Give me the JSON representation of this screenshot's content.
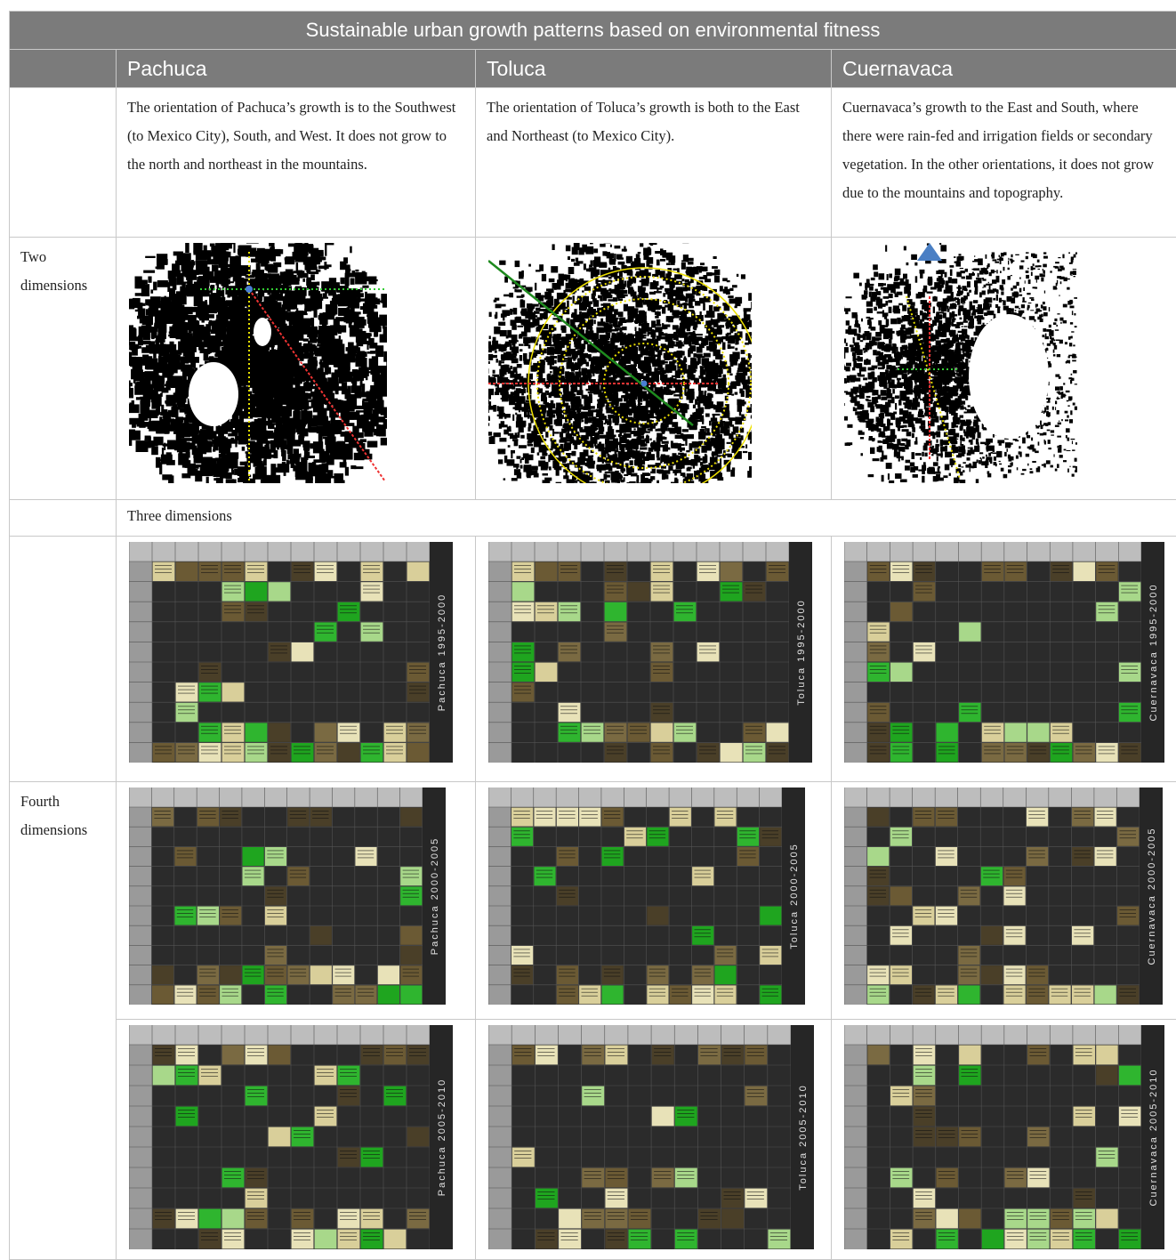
{
  "title": "Sustainable urban growth patterns based on environmental fitness",
  "cities": [
    "Pachuca",
    "Toluca",
    "Cuernavaca"
  ],
  "descriptions": {
    "pachuca": "The orientation of Pachuca’s growth is to the Southwest (to Mexico City), South, and West. It does not grow to the north and northeast in the mountains.",
    "toluca": "The orientation of Toluca’s growth is both to the East and Northeast (to Mexico City).",
    "cuernavaca": "Cuernavaca’s growth to the East and South, where there were rain-fed and irrigation fields or secondary vegetation. In the other orientations, it does not grow due to the mountains and topography."
  },
  "row_labels": {
    "two": "Two dimensions",
    "three": "Three dimensions",
    "fourth": "Fourth dimensions"
  },
  "matrix_labels": {
    "p1": "Pachuca 1995-2000",
    "t1": "Toluca 1995-2000",
    "c1": "Cuernavaca 1995-2000",
    "p2": "Pachuca 2000-2005",
    "t2": "Toluca 2000-2005",
    "c2": "Cuernavaca 2000-2005",
    "p3": "Pachuca 2005-2010",
    "t3": "Toluca 2005-2010",
    "c3": "Cuernavaca 2005-2010"
  },
  "colors": {
    "header_bg": "#7b7b7b",
    "matrix_bg": "#2b2b2b",
    "green_bright": "#2fb52f",
    "green_light": "#a8d88a",
    "cream": "#e8e2b8",
    "brown_dark": "#4a3f28",
    "brown_mid": "#7a6a42"
  }
}
